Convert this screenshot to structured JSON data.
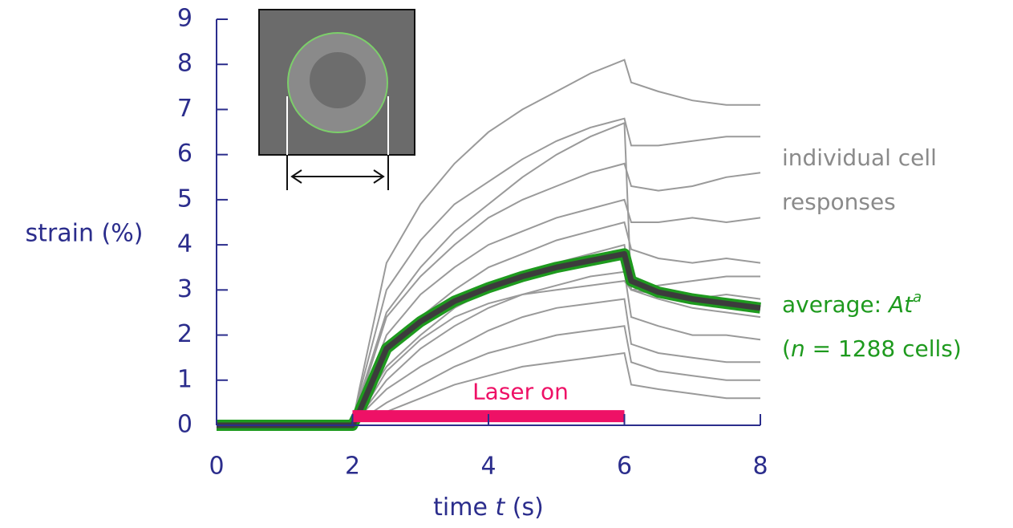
{
  "chart_data": {
    "type": "line",
    "x": [
      0,
      0.5,
      1,
      1.5,
      2,
      2.1,
      2.5,
      3,
      3.5,
      4,
      4.5,
      5,
      5.5,
      6,
      6.1,
      6.5,
      7,
      7.5,
      8
    ],
    "series": [
      {
        "color": "#9a9a9a",
        "values": [
          0.1,
          0.05,
          0,
          0.1,
          0.05,
          0.8,
          3.6,
          4.9,
          5.8,
          6.5,
          7.0,
          7.4,
          7.8,
          8.1,
          7.6,
          7.4,
          7.2,
          7.1,
          7.1
        ]
      },
      {
        "color": "#9a9a9a",
        "values": [
          0,
          0.1,
          0.05,
          0,
          0.1,
          0.7,
          3.0,
          4.1,
          4.9,
          5.4,
          5.9,
          6.3,
          6.6,
          6.8,
          6.2,
          6.2,
          6.3,
          6.4,
          6.4
        ]
      },
      {
        "color": "#9a9a9a",
        "values": [
          0.05,
          0,
          0.1,
          0.05,
          0,
          0.6,
          2.5,
          3.5,
          4.3,
          4.9,
          5.5,
          6.0,
          6.4,
          6.7,
          3.0,
          2.9,
          2.8,
          2.9,
          2.8
        ]
      },
      {
        "color": "#9a9a9a",
        "values": [
          -0.05,
          0.1,
          0,
          0.05,
          0.1,
          0.5,
          2.4,
          3.3,
          4.0,
          4.6,
          5.0,
          5.3,
          5.6,
          5.8,
          5.3,
          5.2,
          5.3,
          5.5,
          5.6
        ]
      },
      {
        "color": "#9a9a9a",
        "values": [
          0.1,
          0,
          -0.1,
          0.05,
          0,
          0.4,
          2.0,
          2.9,
          3.5,
          4.0,
          4.3,
          4.6,
          4.8,
          5.0,
          4.5,
          4.5,
          4.6,
          4.5,
          4.6
        ]
      },
      {
        "color": "#9a9a9a",
        "values": [
          0,
          0.05,
          0.1,
          0,
          0.05,
          0.3,
          1.6,
          2.4,
          3.0,
          3.5,
          3.8,
          4.1,
          4.3,
          4.5,
          3.9,
          3.7,
          3.6,
          3.7,
          3.6
        ]
      },
      {
        "color": "#9a9a9a",
        "values": [
          0.05,
          -0.05,
          0,
          0.1,
          0,
          0.3,
          1.3,
          2.0,
          2.6,
          3.0,
          3.4,
          3.6,
          3.8,
          4.0,
          3.0,
          2.8,
          2.6,
          2.5,
          2.4
        ]
      },
      {
        "color": "#9a9a9a",
        "values": [
          0,
          0.1,
          0.05,
          -0.05,
          0.05,
          0.2,
          1.0,
          1.7,
          2.2,
          2.6,
          2.9,
          3.1,
          3.3,
          3.4,
          2.4,
          2.2,
          2.0,
          2.0,
          1.9
        ]
      },
      {
        "color": "#9a9a9a",
        "values": [
          0.1,
          0,
          0.05,
          0.1,
          0,
          0.2,
          0.8,
          1.3,
          1.7,
          2.1,
          2.4,
          2.6,
          2.7,
          2.8,
          1.8,
          1.6,
          1.5,
          1.4,
          1.4
        ]
      },
      {
        "color": "#9a9a9a",
        "values": [
          -0.05,
          0.05,
          0,
          0.05,
          0.1,
          0.1,
          0.5,
          0.9,
          1.3,
          1.6,
          1.8,
          2.0,
          2.1,
          2.2,
          1.4,
          1.2,
          1.1,
          1.0,
          1.0
        ]
      },
      {
        "color": "#9a9a9a",
        "values": [
          0,
          0.1,
          0,
          0.05,
          0,
          0.1,
          0.3,
          0.6,
          0.9,
          1.1,
          1.3,
          1.4,
          1.5,
          1.6,
          0.9,
          0.8,
          0.7,
          0.6,
          0.6
        ]
      },
      {
        "color": "#9a9a9a",
        "values": [
          0.05,
          0,
          0.1,
          0,
          0.05,
          0.2,
          1.2,
          1.9,
          2.4,
          2.7,
          2.9,
          3.0,
          3.1,
          3.2,
          3.0,
          3.1,
          3.2,
          3.3,
          3.3
        ]
      }
    ],
    "average": {
      "color": "#3c3c3c",
      "outline": "#1e9a1e",
      "values": [
        0,
        0,
        0,
        0,
        0,
        0.3,
        1.7,
        2.3,
        2.75,
        3.05,
        3.3,
        3.5,
        3.65,
        3.8,
        3.2,
        2.95,
        2.8,
        2.7,
        2.6
      ]
    },
    "laser": {
      "label": "Laser on",
      "start": 2,
      "end": 6,
      "level": 0.15,
      "color": "#ee1166"
    },
    "ylabel": "strain (%)",
    "xlabel": {
      "text": "time ",
      "var": "t",
      "unit": " (s)"
    },
    "annotation_cells": "individual cell responses",
    "annotation_average": {
      "text": "average: ",
      "var": "At",
      "sup": "a"
    },
    "annotation_n": {
      "open": "(",
      "var": "n",
      "rest": " = 1288 cells)"
    },
    "xlim": [
      0,
      8
    ],
    "xticks": [
      0,
      2,
      4,
      6,
      8
    ],
    "ylim": [
      0,
      9
    ],
    "yticks": [
      0,
      1,
      2,
      3,
      4,
      5,
      6,
      7,
      8,
      9
    ]
  }
}
